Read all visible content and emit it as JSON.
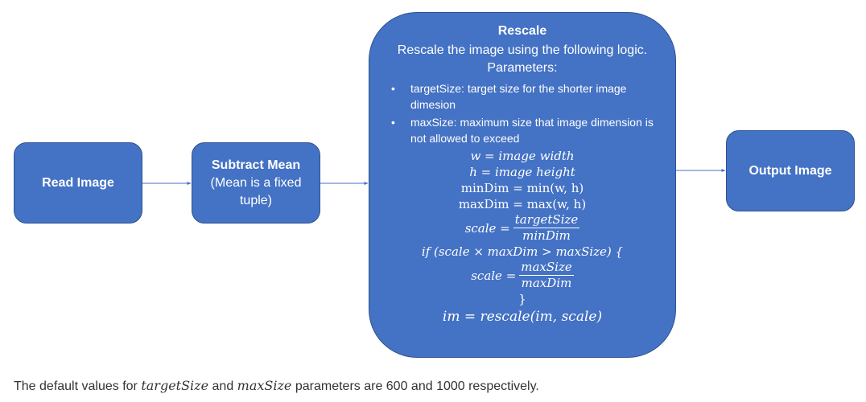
{
  "nodes": {
    "read_image": "Read Image",
    "subtract_mean": {
      "title": "Subtract Mean",
      "subtitle": "(Mean is a fixed tuple)"
    },
    "rescale": {
      "title": "Rescale",
      "description": "Rescale the image using the following logic. Parameters:",
      "params": [
        "targetSize: target size for the shorter image dimesion",
        "maxSize: maximum size that image dimension is not allowed to exceed"
      ],
      "formulas": {
        "w": "w = image width",
        "h": "h = image height",
        "mindim": "minDim = min(w, h)",
        "maxdim": "maxDim = max(w, h)",
        "scale_lhs": "scale =",
        "scale_num": "targetSize",
        "scale_den": "minDim",
        "if": "if (scale × maxDim > maxSize) {",
        "scale2_lhs": "scale =",
        "scale2_num": "maxSize",
        "scale2_den": "maxDim",
        "close": "}",
        "final": "im = rescale(im, scale)"
      }
    },
    "output_image": "Output Image"
  },
  "footnote": {
    "pre": "The default values for",
    "var1": "targetSize",
    "mid": "and",
    "var2": "maxSize",
    "post": "parameters are 600 and 1000 respectively."
  },
  "colors": {
    "node_fill": "#4472C4",
    "node_border": "#2F528F",
    "arrow": "#4472C4"
  }
}
